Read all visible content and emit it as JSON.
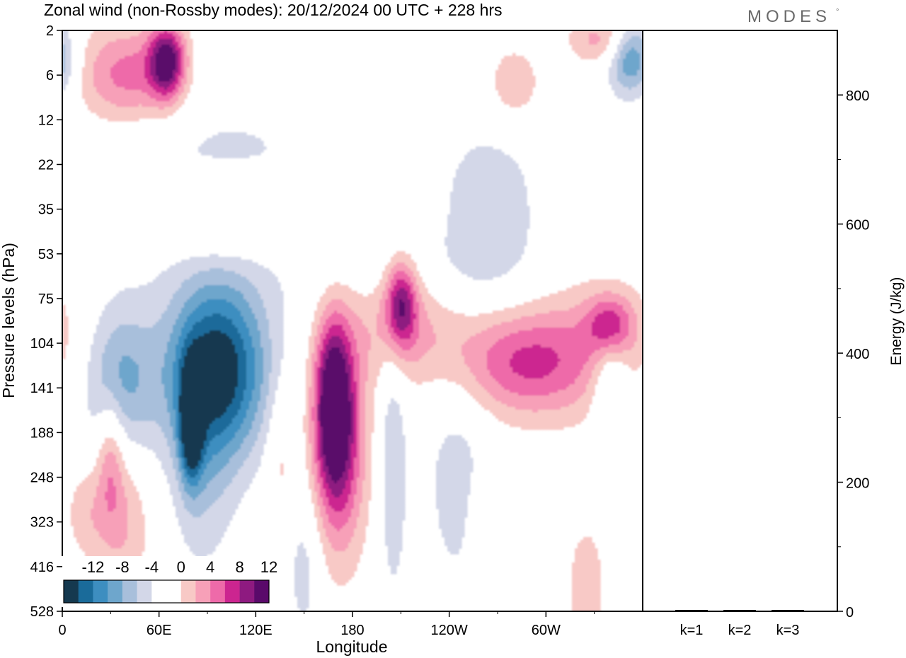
{
  "header": {
    "title": "Zonal wind (non-Rossby modes):  20/12/2024  00 UTC  + 228 hrs",
    "brand": "MODES",
    "brand_mark": "°"
  },
  "colors": {
    "neg": [
      "#15394f",
      "#1a6b9a",
      "#3d8ec0",
      "#6ea6cc",
      "#a8bfdb",
      "#d3d7e8"
    ],
    "zero": "#ffffff",
    "pos": [
      "#f8c9c6",
      "#f7a0b8",
      "#ee6aa9",
      "#cc2590",
      "#8e1a80",
      "#5a0a6a"
    ]
  },
  "chart_data": [
    {
      "type": "heatmap",
      "title": "Zonal wind (non-Rossby modes):  20/12/2024  00 UTC  + 228 hrs",
      "xlabel": "Longitude",
      "ylabel": "Pressure levels (hPa)",
      "x_ticks": [
        "0",
        "60E",
        "120E",
        "180",
        "120W",
        "60W"
      ],
      "y_ticks": [
        "2",
        "6",
        "12",
        "22",
        "35",
        "53",
        "75",
        "104",
        "141",
        "188",
        "248",
        "323",
        "416",
        "528"
      ],
      "colorbar": {
        "tick_labels": [
          "-12",
          "-8",
          "-4",
          "0",
          "4",
          "8",
          "12"
        ],
        "levels": [
          -14,
          -12,
          -10,
          -8,
          -6,
          -4,
          -2,
          2,
          4,
          6,
          8,
          10,
          12,
          14
        ]
      },
      "features": [
        {
          "lon": 96,
          "lev": 7.6,
          "value": -14,
          "sx": 22,
          "sy": 1.4
        },
        {
          "lon": 80,
          "lev": 8.8,
          "value": -12,
          "sx": 5,
          "sy": 0.9
        },
        {
          "lon": 35,
          "lev": 7.8,
          "value": -7,
          "sx": 16,
          "sy": 1.2
        },
        {
          "lon": 228,
          "lev": 5.5,
          "value": -4,
          "sx": 45,
          "sy": 0.8
        },
        {
          "lon": 340,
          "lev": 7.8,
          "value": -5,
          "sx": 8,
          "sy": 1.0
        },
        {
          "lon": 353,
          "lev": 0.6,
          "value": -9,
          "sx": 10,
          "sy": 0.6
        },
        {
          "lon": 205,
          "lev": 9.6,
          "value": -4,
          "sx": 6,
          "sy": 2.2
        },
        {
          "lon": 245,
          "lev": 10.0,
          "value": -3,
          "sx": 15,
          "sy": 2.0
        },
        {
          "lon": 150,
          "lev": 12.0,
          "value": -3,
          "sx": 8,
          "sy": 1.3
        },
        {
          "lon": 87,
          "lev": 10.2,
          "value": -3,
          "sx": 14,
          "sy": 1.6
        },
        {
          "lon": 100,
          "lev": 3.5,
          "value": -3,
          "sx": 55,
          "sy": 1.5
        },
        {
          "lon": 265,
          "lev": 3.8,
          "value": -3,
          "sx": 25,
          "sy": 1.4
        },
        {
          "lon": 168,
          "lev": 8.3,
          "value": 11,
          "sx": 8,
          "sy": 1.3
        },
        {
          "lon": 172,
          "lev": 9.3,
          "value": 9,
          "sx": 12,
          "sy": 1.8
        },
        {
          "lon": 210,
          "lev": 6.1,
          "value": 10,
          "sx": 7,
          "sy": 0.7
        },
        {
          "lon": 216,
          "lev": 6.2,
          "value": 6,
          "sx": 30,
          "sy": 1.1
        },
        {
          "lon": 285,
          "lev": 7.5,
          "value": 6,
          "sx": 30,
          "sy": 0.8
        },
        {
          "lon": 340,
          "lev": 6.6,
          "value": 8,
          "sx": 10,
          "sy": 0.5
        },
        {
          "lon": 320,
          "lev": 7.0,
          "value": 4,
          "sx": 40,
          "sy": 1.2
        },
        {
          "lon": 65,
          "lev": 0.7,
          "value": 12,
          "sx": 8,
          "sy": 0.6
        },
        {
          "lon": 40,
          "lev": 1.0,
          "value": 7,
          "sx": 22,
          "sy": 0.8
        },
        {
          "lon": 100,
          "lev": 4.2,
          "value": 5,
          "sx": 30,
          "sy": 0.7
        },
        {
          "lon": 30,
          "lev": 9.5,
          "value": 5,
          "sx": 6,
          "sy": 1.0
        },
        {
          "lon": 38,
          "lev": 11.0,
          "value": 4,
          "sx": 12,
          "sy": 1.2
        },
        {
          "lon": 15,
          "lev": 10.8,
          "value": 3,
          "sx": 10,
          "sy": 0.8
        },
        {
          "lon": 325,
          "lev": 12.5,
          "value": 4,
          "sx": 8,
          "sy": 1.0
        },
        {
          "lon": 135,
          "lev": 9.5,
          "value": 3,
          "sx": 6,
          "sy": 1.2
        },
        {
          "lon": 265,
          "lev": 11.0,
          "value": 3,
          "sx": 8,
          "sy": 0.8
        },
        {
          "lon": 280,
          "lev": 1.2,
          "value": 4,
          "sx": 12,
          "sy": 0.6
        },
        {
          "lon": 335,
          "lev": 0.2,
          "value": 5,
          "sx": 15,
          "sy": 0.4
        }
      ]
    },
    {
      "type": "bar",
      "ylabel": "Energy (J/kg)",
      "categories": [
        "k=1",
        "k=2",
        "k=3"
      ],
      "values": [
        0.5,
        0.5,
        0.5
      ],
      "ylim": [
        0,
        900
      ],
      "y_ticks": [
        "0",
        "200",
        "400",
        "600",
        "800"
      ]
    }
  ]
}
